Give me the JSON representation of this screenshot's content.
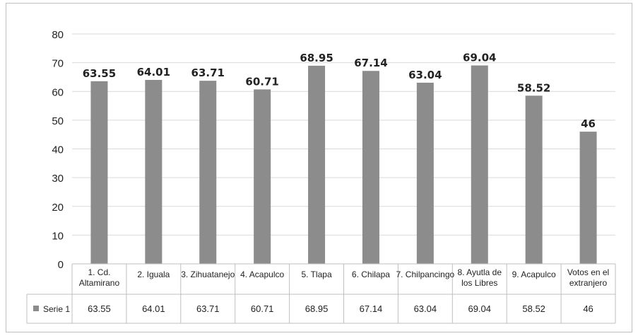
{
  "chart_data": {
    "type": "bar",
    "categories": [
      [
        "1. Cd.",
        "Altamirano"
      ],
      [
        "2. Iguala"
      ],
      [
        "3. Zihuatanejo"
      ],
      [
        "4. Acapulco"
      ],
      [
        "5. Tlapa"
      ],
      [
        "6. Chilapa"
      ],
      [
        "7. Chilpancingo"
      ],
      [
        "8. Ayutla de",
        "los Libres"
      ],
      [
        "9. Acapulco"
      ],
      [
        "Votos en el",
        "extranjero"
      ]
    ],
    "series": [
      {
        "name": "Serie 1",
        "values": [
          63.55,
          64.01,
          63.71,
          60.71,
          68.95,
          67.14,
          63.04,
          69.04,
          58.52,
          46
        ],
        "data_labels": [
          "63.55",
          "64.01",
          "63.71",
          "60.71",
          "68.95",
          "67.14",
          "63.04",
          "69.04",
          "58.52",
          "46"
        ],
        "table_labels": [
          "63.55",
          "64.01",
          "63.71",
          "60.71",
          "68.95",
          "67.14",
          "63.04",
          "69.04",
          "58.52",
          "46"
        ],
        "color": "#8c8c8c"
      }
    ],
    "y_ticks": [
      "0",
      "10",
      "20",
      "30",
      "40",
      "50",
      "60",
      "70",
      "80"
    ],
    "ylim": [
      0,
      80
    ],
    "grid": true,
    "legend_placement": "data-table",
    "data_table": true
  }
}
